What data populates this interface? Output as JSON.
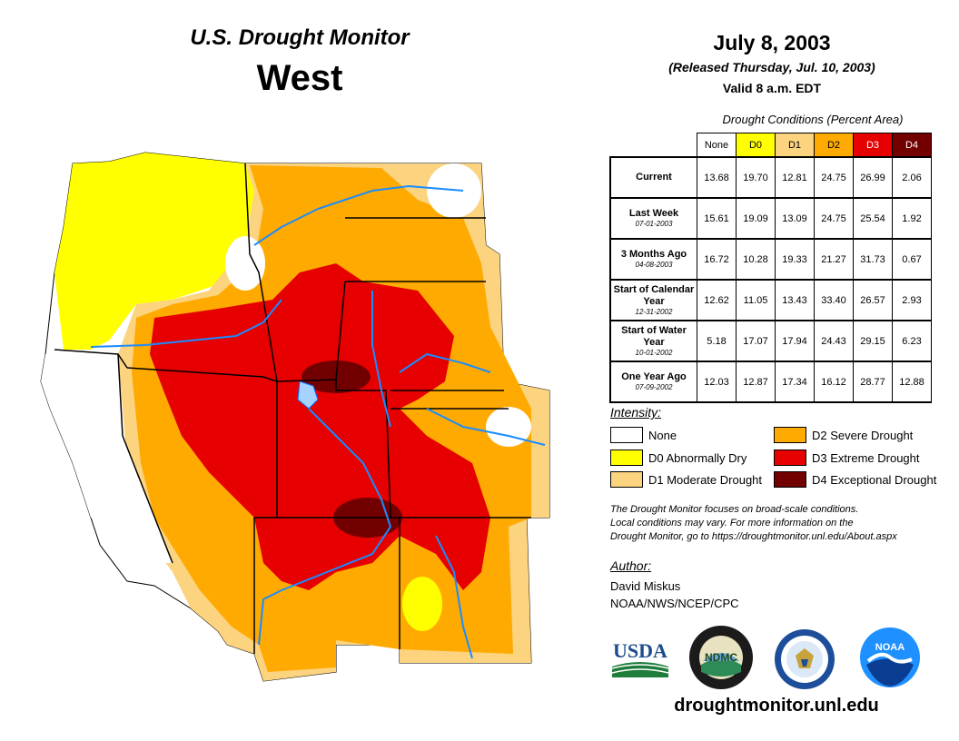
{
  "header": {
    "product": "U.S. Drought Monitor",
    "region": "West",
    "date": "July 8, 2003",
    "released": "(Released Thursday, Jul. 10, 2003)",
    "valid": "Valid 8 a.m. EDT"
  },
  "stats": {
    "caption": "Drought Conditions (Percent Area)",
    "columns": [
      "None",
      "D0",
      "D1",
      "D2",
      "D3",
      "D4"
    ],
    "column_colors": [
      "#ffffff",
      "#ffff00",
      "#fcd37f",
      "#ffaa00",
      "#e60000",
      "#730000"
    ],
    "rows": [
      {
        "label": "Current",
        "date": "",
        "values": [
          "13.68",
          "19.70",
          "12.81",
          "24.75",
          "26.99",
          "2.06"
        ]
      },
      {
        "label": "Last Week",
        "date": "07-01-2003",
        "values": [
          "15.61",
          "19.09",
          "13.09",
          "24.75",
          "25.54",
          "1.92"
        ]
      },
      {
        "label": "3 Months Ago",
        "date": "04-08-2003",
        "values": [
          "16.72",
          "10.28",
          "19.33",
          "21.27",
          "31.73",
          "0.67"
        ]
      },
      {
        "label": "Start of Calendar Year",
        "date": "12-31-2002",
        "values": [
          "12.62",
          "11.05",
          "13.43",
          "33.40",
          "26.57",
          "2.93"
        ]
      },
      {
        "label": "Start of Water Year",
        "date": "10-01-2002",
        "values": [
          "5.18",
          "17.07",
          "17.94",
          "24.43",
          "29.15",
          "6.23"
        ]
      },
      {
        "label": "One Year Ago",
        "date": "07-09-2002",
        "values": [
          "12.03",
          "12.87",
          "17.34",
          "16.12",
          "28.77",
          "12.88"
        ]
      }
    ]
  },
  "legend": {
    "title": "Intensity:",
    "items": [
      {
        "label": "None",
        "color": "#ffffff"
      },
      {
        "label": "D0 Abnormally Dry",
        "color": "#ffff00"
      },
      {
        "label": "D1 Moderate Drought",
        "color": "#fcd37f"
      },
      {
        "label": "D2 Severe Drought",
        "color": "#ffaa00"
      },
      {
        "label": "D3 Extreme Drought",
        "color": "#e60000"
      },
      {
        "label": "D4 Exceptional Drought",
        "color": "#730000"
      }
    ]
  },
  "note": {
    "line1": "The Drought Monitor focuses on broad-scale conditions.",
    "line2": "Local conditions may vary. For more information on the",
    "line3": "Drought Monitor, go to https://droughtmonitor.unl.edu/About.aspx"
  },
  "author": {
    "title": "Author:",
    "name": "David Miskus",
    "org": "NOAA/NWS/NCEP/CPC"
  },
  "logos": {
    "usda": "USDA",
    "ndmc": "NDMC",
    "noaa": "NOAA"
  },
  "site_url": "droughtmonitor.unl.edu"
}
